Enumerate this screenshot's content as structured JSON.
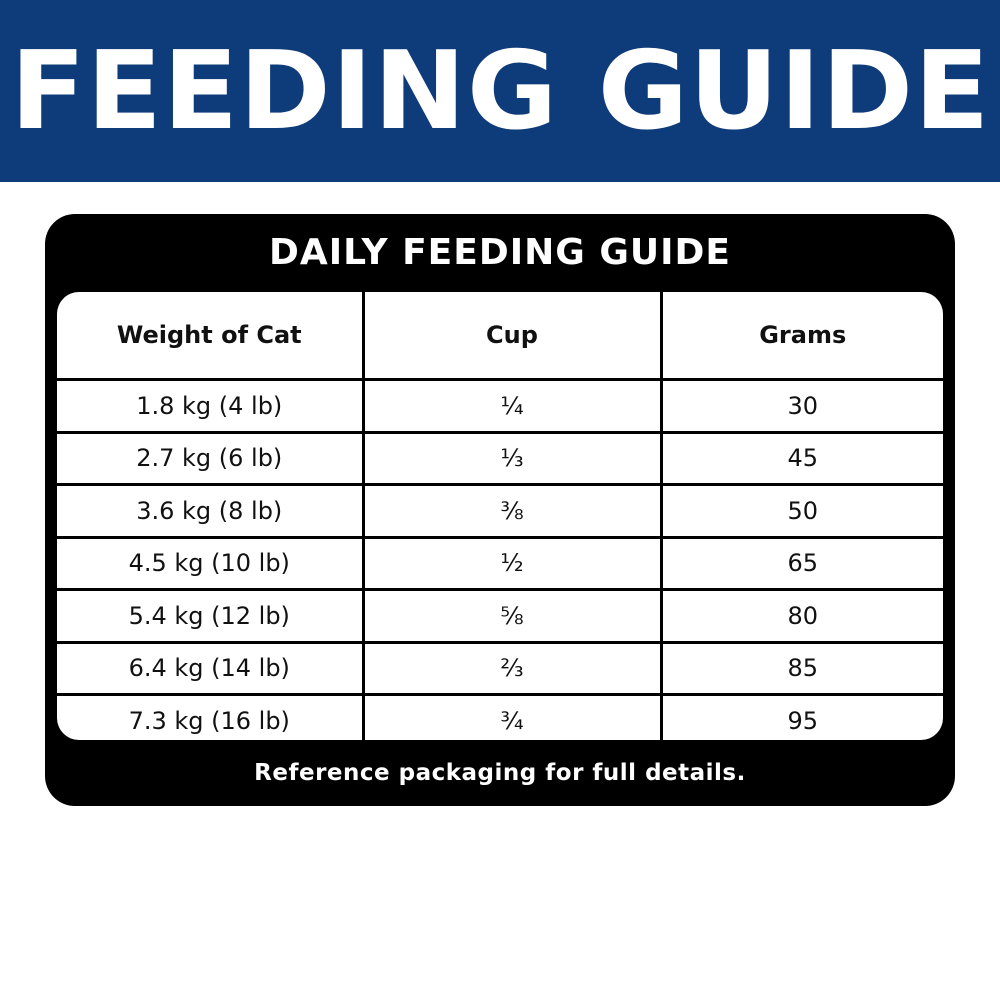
{
  "banner": {
    "title": "FEEDING GUIDE",
    "background": "#0e3b7a"
  },
  "card": {
    "title": "DAILY FEEDING GUIDE",
    "footer": "Reference packaging for full details."
  },
  "table": {
    "headers": [
      "Weight of Cat",
      "Cup",
      "Grams"
    ],
    "rows": [
      [
        "1.8 kg (4 lb)",
        "¼",
        "30"
      ],
      [
        "2.7 kg (6 lb)",
        "⅓",
        "45"
      ],
      [
        "3.6 kg (8 lb)",
        "⅜",
        "50"
      ],
      [
        "4.5 kg (10 lb)",
        "½",
        "65"
      ],
      [
        "5.4 kg (12 lb)",
        "⅝",
        "80"
      ],
      [
        "6.4 kg (14 lb)",
        "⅔",
        "85"
      ],
      [
        "7.3 kg (16 lb)",
        "¾",
        "95"
      ]
    ]
  }
}
